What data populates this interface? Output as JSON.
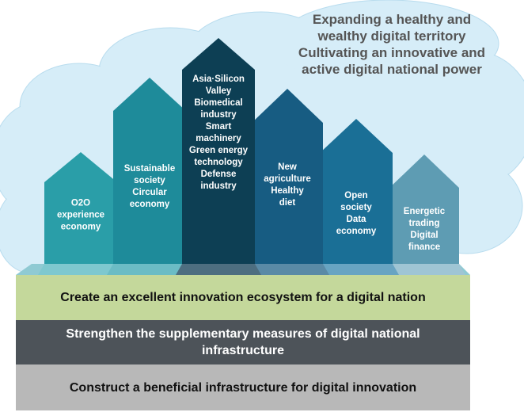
{
  "vision": {
    "lines": [
      "Expanding a healthy and",
      "wealthy digital territory",
      "Cultivating an innovative and",
      "active digital national power"
    ]
  },
  "pillars": [
    {
      "id": "o2o",
      "lines": [
        "O2O",
        "experience",
        "economy"
      ],
      "color": "#2a9ea8"
    },
    {
      "id": "sustainable",
      "lines": [
        "Sustainable",
        "society",
        "Circular",
        "economy"
      ],
      "color": "#1e8b9a"
    },
    {
      "id": "asia-silicon-valley",
      "lines": [
        "Asia·Silicon",
        "Valley",
        "Biomedical",
        "industry",
        "Smart",
        "machinery",
        "Green energy",
        "technology",
        "Defense",
        "industry"
      ],
      "color": "#0d3f54"
    },
    {
      "id": "new-agriculture",
      "lines": [
        "New",
        "agriculture",
        "Healthy",
        "diet"
      ],
      "color": "#175c82"
    },
    {
      "id": "open-society",
      "lines": [
        "Open",
        "society",
        "Data",
        "economy"
      ],
      "color": "#1a6f96"
    },
    {
      "id": "energetic-trading",
      "lines": [
        "Energetic",
        "trading",
        "Digital",
        "finance"
      ],
      "color": "#5e9cb3"
    }
  ],
  "foundation": {
    "top": "Create an excellent innovation ecosystem for a digital nation",
    "middle": "Strengthen the supplementary measures of digital national infrastructure",
    "bottom": "Construct a beneficial infrastructure for digital innovation"
  },
  "colors": {
    "cloud": "#d6edf8",
    "cloud_edge": "#b8dcee",
    "band_top": "#c4d89b",
    "band_middle": "#4d5359",
    "band_bottom": "#b8b8b8",
    "band_middle_text": "#ffffff",
    "vision_text": "#555555"
  }
}
